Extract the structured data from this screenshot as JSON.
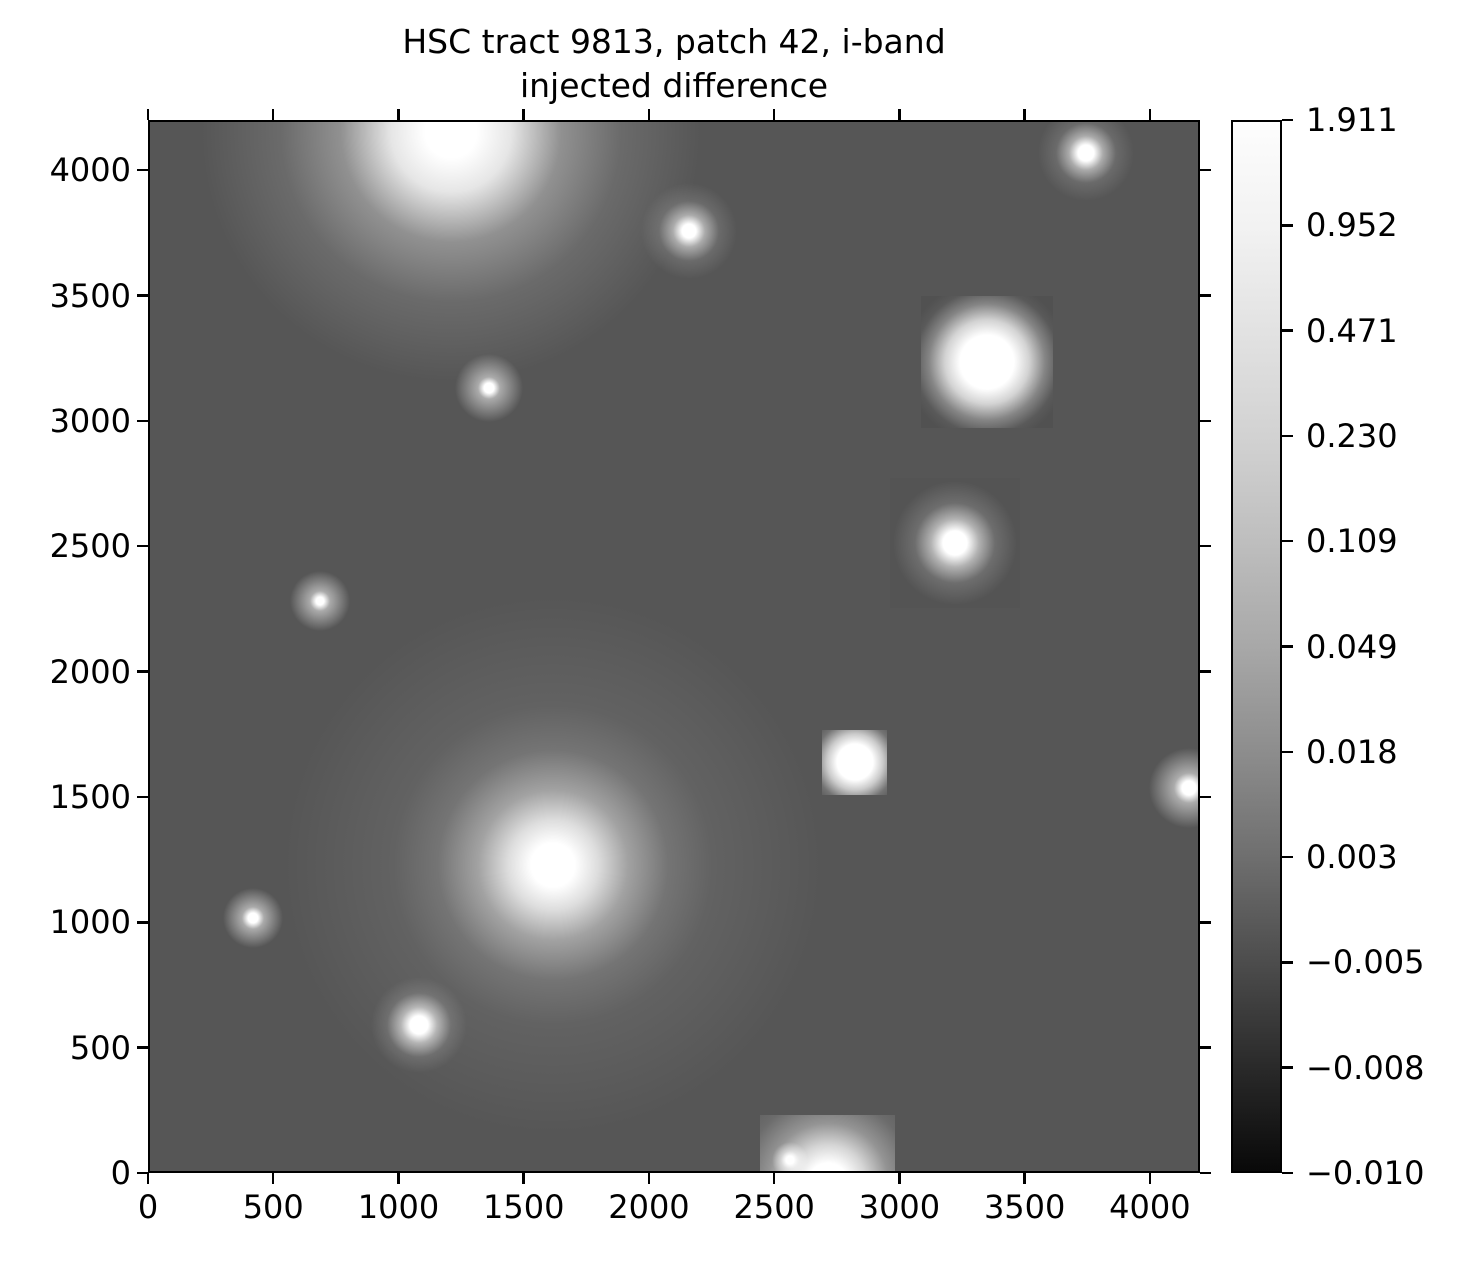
{
  "title": {
    "line1": "HSC tract 9813, patch 42, i-band",
    "line2": "injected difference"
  },
  "chart_data": {
    "type": "heatmap",
    "title": "HSC tract 9813, patch 42, i-band injected difference",
    "xlabel": "",
    "ylabel": "",
    "x_range": [
      0,
      4200
    ],
    "y_range": [
      0,
      4200
    ],
    "x_ticks": [
      0,
      500,
      1000,
      1500,
      2000,
      2500,
      3000,
      3500,
      4000
    ],
    "y_ticks": [
      0,
      500,
      1000,
      1500,
      2000,
      2500,
      3000,
      3500,
      4000
    ],
    "grid": false,
    "background_color": "#565656",
    "colorbar": {
      "position": "right",
      "tick_labels": [
        "1.911",
        "0.952",
        "0.471",
        "0.230",
        "0.109",
        "0.049",
        "0.018",
        "0.003",
        "−0.005",
        "−0.008",
        "−0.010"
      ],
      "top_color": "#fdfdfd",
      "bottom_color": "#090909",
      "gradient": [
        [
          "#fdfdfd",
          0
        ],
        [
          "#f2f2f2",
          10
        ],
        [
          "#e2e2e2",
          20
        ],
        [
          "#d2d2d2",
          30
        ],
        [
          "#bebebe",
          40
        ],
        [
          "#a8a8a8",
          50
        ],
        [
          "#8d8d8d",
          60
        ],
        [
          "#6f6f6f",
          70
        ],
        [
          "#4d4d4d",
          80
        ],
        [
          "#2a2a2a",
          90
        ],
        [
          "#090909",
          100
        ]
      ]
    },
    "sources": [
      {
        "name": "bright-star-top",
        "x": 1200,
        "y": 4160,
        "stops": [
          [
            1,
            26
          ],
          [
            0.85,
            60
          ],
          [
            0.35,
            110
          ],
          [
            0.12,
            170
          ],
          [
            0,
            250
          ]
        ]
      },
      {
        "name": "small-source",
        "x": 2152,
        "y": 3765,
        "stops": [
          [
            1,
            7
          ],
          [
            0.5,
            16
          ],
          [
            0.12,
            30
          ],
          [
            0,
            48
          ]
        ]
      },
      {
        "name": "small-source",
        "x": 3737,
        "y": 4076,
        "stops": [
          [
            1,
            8
          ],
          [
            0.5,
            17
          ],
          [
            0.12,
            30
          ],
          [
            0,
            48
          ]
        ]
      },
      {
        "name": "bright-star-stamp",
        "x": 3341,
        "y": 3243,
        "stamp": 132,
        "tint": "rgba(0,0,0,0.05)",
        "stops": [
          [
            1,
            27
          ],
          [
            0.75,
            42
          ],
          [
            0.3,
            58
          ],
          [
            0.05,
            72
          ],
          [
            0,
            82
          ]
        ]
      },
      {
        "name": "faint-source",
        "x": 1353,
        "y": 3139,
        "stops": [
          [
            1,
            5
          ],
          [
            0.5,
            11
          ],
          [
            0,
            34
          ]
        ]
      },
      {
        "name": "faint-source",
        "x": 679,
        "y": 2289,
        "stops": [
          [
            1,
            4
          ],
          [
            0.5,
            10
          ],
          [
            0,
            30
          ]
        ]
      },
      {
        "name": "medium-source-stamp",
        "x": 3214,
        "y": 2521,
        "stamp": 130,
        "tint": "rgba(0,0,0,0.02)",
        "stops": [
          [
            1,
            12
          ],
          [
            0.55,
            24
          ],
          [
            0.15,
            40
          ],
          [
            0,
            62
          ]
        ]
      },
      {
        "name": "bright-source-stamp",
        "x": 2814,
        "y": 1647,
        "stamp": 65,
        "tint": "rgba(0,0,0,0.06)",
        "stops": [
          [
            1,
            18
          ],
          [
            0.7,
            28
          ],
          [
            0.2,
            40
          ],
          [
            0,
            52
          ]
        ]
      },
      {
        "name": "edge-source-right",
        "x": 4148,
        "y": 1544,
        "stops": [
          [
            1,
            7
          ],
          [
            0.5,
            15
          ],
          [
            0,
            40
          ]
        ]
      },
      {
        "name": "bright-star-center",
        "x": 1609,
        "y": 1236,
        "stops": [
          [
            1,
            22
          ],
          [
            0.8,
            45
          ],
          [
            0.45,
            75
          ],
          [
            0.18,
            115
          ],
          [
            0.07,
            160
          ],
          [
            0,
            270
          ]
        ]
      },
      {
        "name": "faint-source",
        "x": 411,
        "y": 1025,
        "stops": [
          [
            1,
            5
          ],
          [
            0.5,
            11
          ],
          [
            0,
            30
          ]
        ]
      },
      {
        "name": "small-source",
        "x": 1074,
        "y": 598,
        "stops": [
          [
            1,
            9
          ],
          [
            0.55,
            18
          ],
          [
            0.12,
            32
          ],
          [
            0,
            48
          ]
        ]
      },
      {
        "name": "edge-source-bottom-stamp",
        "x": 2705,
        "y": -30,
        "stamp": 135,
        "tint": "rgba(255,255,255,0.03)",
        "stops": [
          [
            1,
            20
          ],
          [
            0.75,
            38
          ],
          [
            0.35,
            60
          ],
          [
            0.1,
            85
          ],
          [
            0,
            110
          ]
        ]
      },
      {
        "name": "faint-point",
        "x": 2555,
        "y": 60,
        "stops": [
          [
            1,
            4
          ],
          [
            0.5,
            9
          ],
          [
            0,
            18
          ]
        ]
      }
    ]
  }
}
